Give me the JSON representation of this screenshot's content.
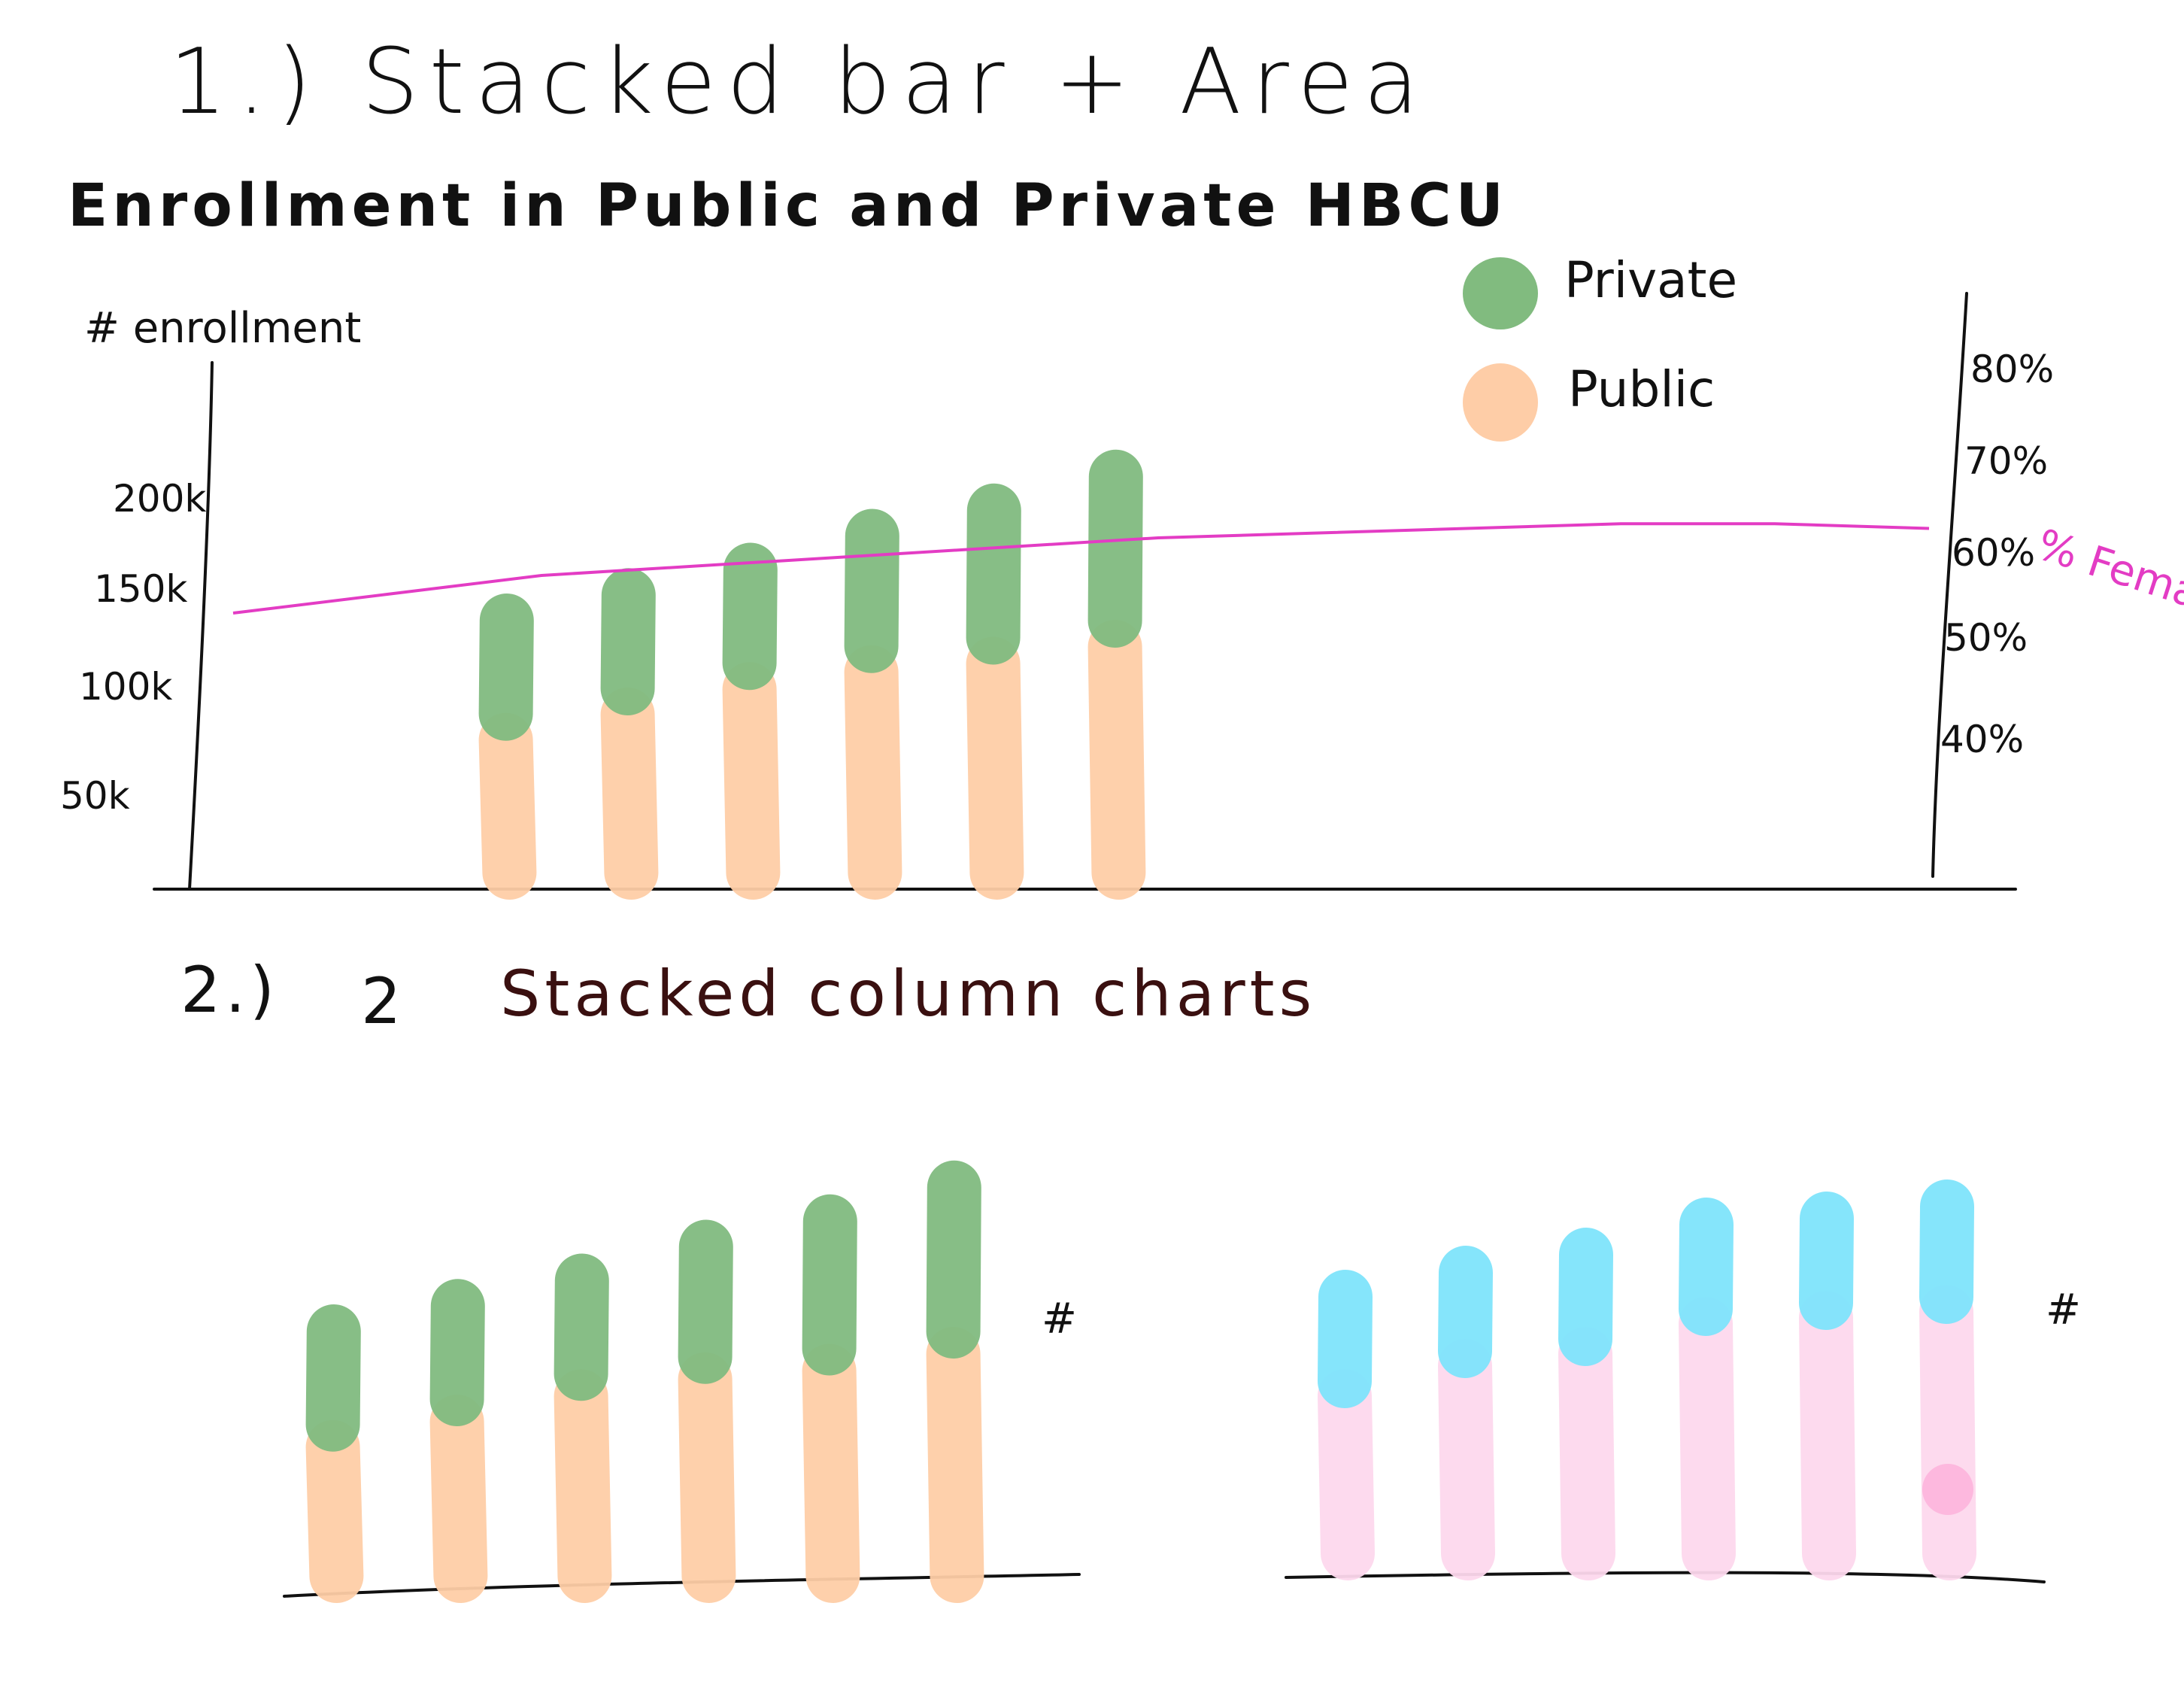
{
  "header": {
    "sketch1_title": "1.) Stacked bar + Area",
    "chart1_title": "Enrollment in Public and Private HBCU",
    "sketch2_number": "2.)",
    "sketch2_count": "2",
    "sketch2_title": "Stacked column charts"
  },
  "colors": {
    "private": "#81bb7f",
    "public": "#fecda7",
    "female_line": "#e33cc4",
    "cyan": "#7ee4fb",
    "pink": "#fdd8ed",
    "pink_dot": "#fdb8de",
    "ink": "#111111",
    "dark_red_ink": "#3a1010"
  },
  "chart_data": [
    {
      "type": "bar",
      "stacked": true,
      "title": "Enrollment in Public and Private HBCU",
      "ylabel": "# enrollment",
      "yticks": [
        "50k",
        "100k",
        "150k",
        "200k"
      ],
      "secondary_yticks": [
        "40%",
        "50%",
        "60%",
        "70%",
        "80%"
      ],
      "secondary_label": "% Female",
      "legend": [
        "Private",
        "Public"
      ],
      "legend_position": "top-right",
      "series": [
        {
          "name": "Public",
          "color": "#fecda7",
          "values": [
            85,
            100,
            115,
            125,
            130,
            140
          ]
        },
        {
          "name": "Private",
          "color": "#81bb7f",
          "values": [
            55,
            55,
            55,
            65,
            75,
            85
          ]
        }
      ],
      "line_series": {
        "name": "% Female",
        "color": "#e33cc4",
        "values": [
          54,
          56,
          58,
          59,
          60,
          61,
          62,
          62.5,
          63,
          63.5,
          63.5,
          63
        ]
      }
    },
    {
      "type": "bar",
      "stacked": true,
      "ylabel": "#",
      "series": [
        {
          "name": "Public",
          "color": "#fecda7",
          "values": [
            85,
            100,
            115,
            125,
            130,
            140
          ]
        },
        {
          "name": "Private",
          "color": "#81bb7f",
          "values": [
            55,
            55,
            55,
            65,
            75,
            85
          ]
        }
      ]
    },
    {
      "type": "bar",
      "stacked": true,
      "ylabel": "#",
      "series": [
        {
          "name": "",
          "color": "#fdd8ed",
          "values": [
            140,
            165,
            175,
            200,
            205,
            210
          ]
        },
        {
          "name": "",
          "color": "#7ee4fb",
          "values": [
            70,
            65,
            70,
            70,
            70,
            75
          ]
        }
      ]
    }
  ]
}
